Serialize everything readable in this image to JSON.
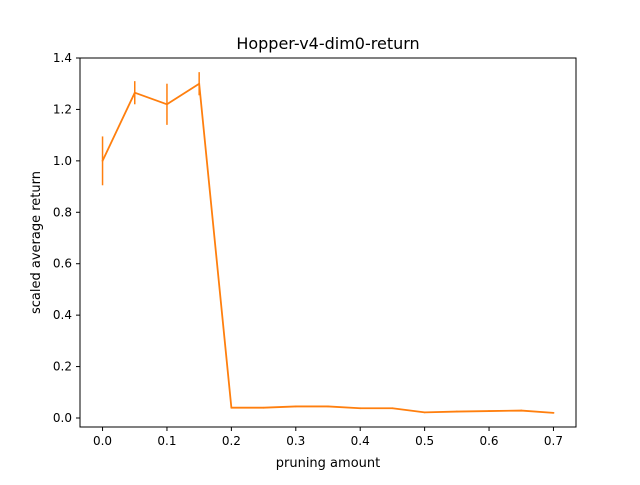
{
  "chart_data": {
    "type": "line",
    "title": "Hopper-v4-dim0-return",
    "xlabel": "pruning amount",
    "ylabel": "scaled average return",
    "xlim": [
      -0.035,
      0.735
    ],
    "ylim": [
      -0.035,
      1.4
    ],
    "xticks": [
      0.0,
      0.1,
      0.2,
      0.3,
      0.4,
      0.5,
      0.6,
      0.7
    ],
    "xtick_labels": [
      "0.0",
      "0.1",
      "0.2",
      "0.3",
      "0.4",
      "0.5",
      "0.6",
      "0.7"
    ],
    "yticks": [
      0.0,
      0.2,
      0.4,
      0.6,
      0.8,
      1.0,
      1.2,
      1.4
    ],
    "ytick_labels": [
      "0.0",
      "0.2",
      "0.4",
      "0.6",
      "0.8",
      "1.0",
      "1.2",
      "1.4"
    ],
    "grid": false,
    "series": [
      {
        "color": "#ff7f0e",
        "x": [
          0.0,
          0.05,
          0.1,
          0.15,
          0.2,
          0.25,
          0.3,
          0.35,
          0.4,
          0.45,
          0.5,
          0.55,
          0.6,
          0.65,
          0.7
        ],
        "y": [
          1.0,
          1.265,
          1.22,
          1.3,
          0.04,
          0.04,
          0.045,
          0.045,
          0.038,
          0.038,
          0.022,
          0.025,
          0.027,
          0.029,
          0.02
        ],
        "yerr": [
          0.095,
          0.045,
          0.08,
          0.045,
          0.003,
          0.002,
          0.002,
          0.002,
          0.002,
          0.002,
          0.002,
          0.002,
          0.002,
          0.002,
          0.002
        ]
      }
    ]
  }
}
